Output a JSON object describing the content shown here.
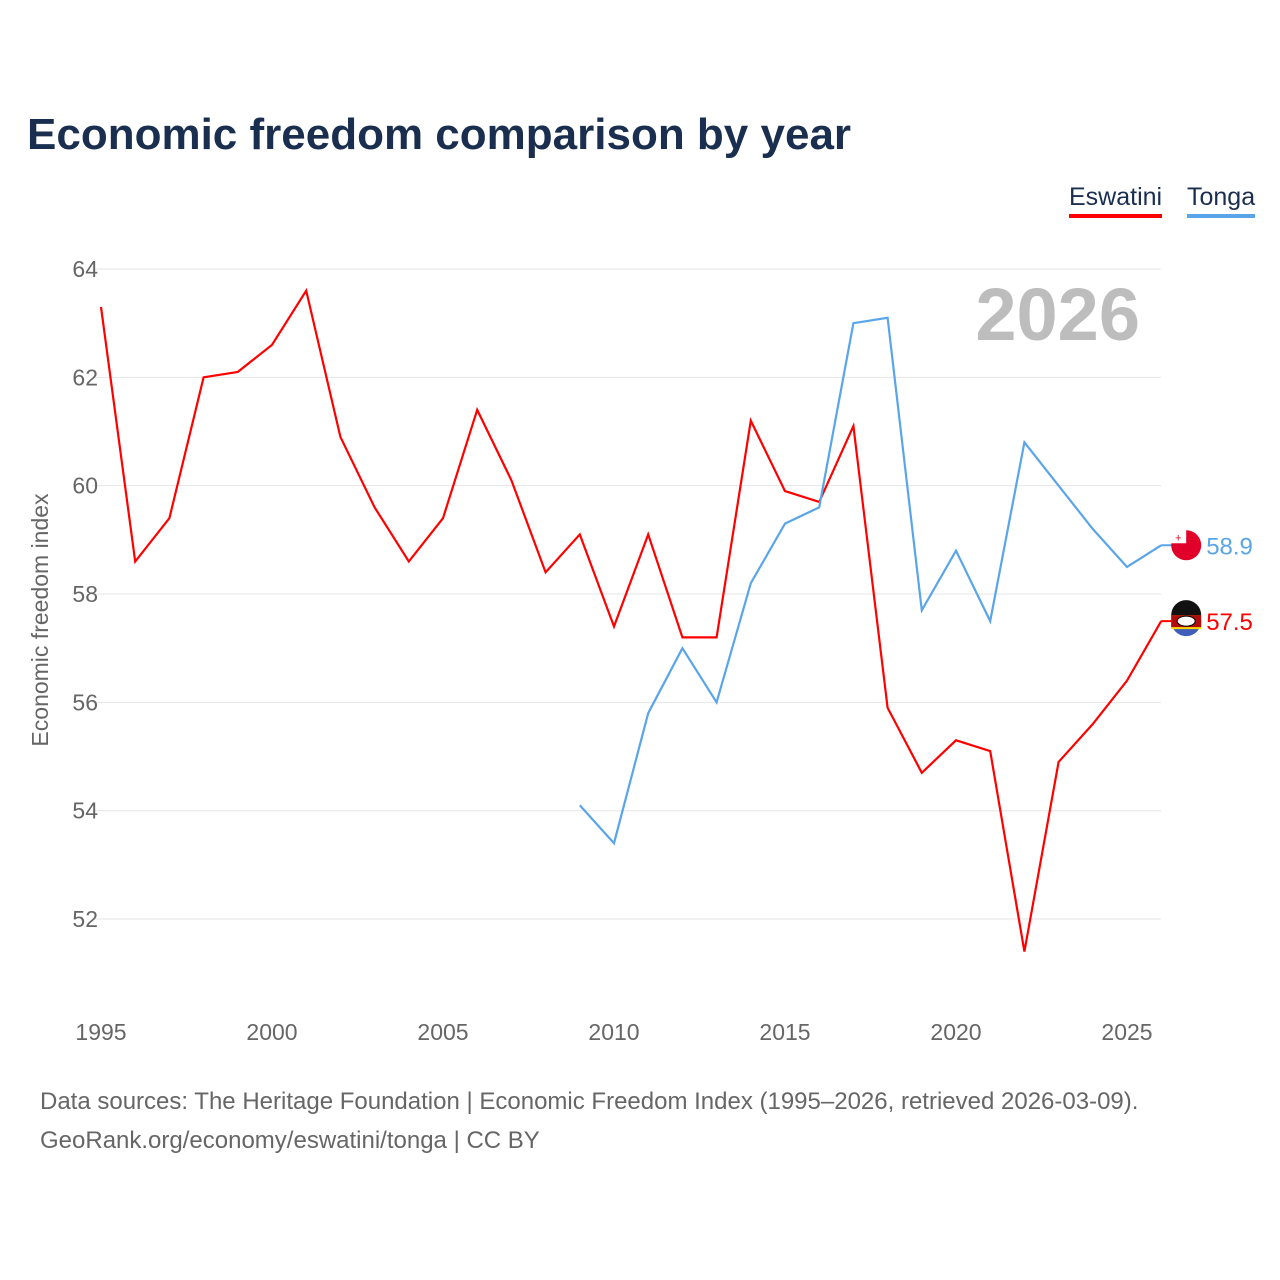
{
  "title": "Economic freedom comparison by year",
  "footer": {
    "line1": "Data sources: The Heritage Foundation | Economic Freedom Index (1995–2026, retrieved 2026-03-09).",
    "line2": "GeoRank.org/economy/eswatini/tonga | CC BY"
  },
  "chart_data": {
    "type": "line",
    "title": "Economic freedom comparison by year",
    "xlabel": "",
    "ylabel": "Economic freedom index",
    "watermark_year": "2026",
    "xlim": [
      1995,
      2026
    ],
    "ylim": [
      51,
      64
    ],
    "xticks": [
      1995,
      2000,
      2005,
      2010,
      2015,
      2020,
      2025
    ],
    "yticks": [
      52,
      54,
      56,
      58,
      60,
      62,
      64
    ],
    "grid": true,
    "legend_position": "top-right",
    "series": [
      {
        "name": "Eswatini",
        "color": "#ff0000",
        "end_label": "57.5",
        "x": [
          1995,
          1996,
          1997,
          1998,
          1999,
          2000,
          2001,
          2002,
          2003,
          2004,
          2005,
          2006,
          2007,
          2008,
          2009,
          2010,
          2011,
          2012,
          2013,
          2014,
          2015,
          2016,
          2017,
          2018,
          2019,
          2020,
          2021,
          2022,
          2023,
          2024,
          2025,
          2026
        ],
        "values": [
          63.3,
          58.6,
          59.4,
          62.0,
          62.1,
          62.6,
          63.6,
          60.9,
          59.6,
          58.6,
          59.4,
          61.4,
          60.1,
          58.4,
          59.1,
          57.4,
          59.1,
          57.2,
          57.2,
          61.2,
          59.9,
          59.7,
          61.1,
          55.9,
          54.7,
          55.3,
          55.1,
          51.4,
          54.9,
          55.6,
          56.4,
          57.5
        ]
      },
      {
        "name": "Tonga",
        "color": "#5aa5ea",
        "end_label": "58.9",
        "x": [
          2009,
          2010,
          2011,
          2012,
          2013,
          2014,
          2015,
          2016,
          2017,
          2018,
          2019,
          2020,
          2021,
          2022,
          2023,
          2024,
          2025,
          2026
        ],
        "values": [
          54.1,
          53.4,
          55.8,
          57.0,
          56.0,
          58.2,
          59.3,
          59.6,
          63.0,
          63.1,
          57.7,
          58.8,
          57.5,
          60.8,
          60.0,
          59.2,
          58.5,
          58.9
        ]
      }
    ]
  }
}
